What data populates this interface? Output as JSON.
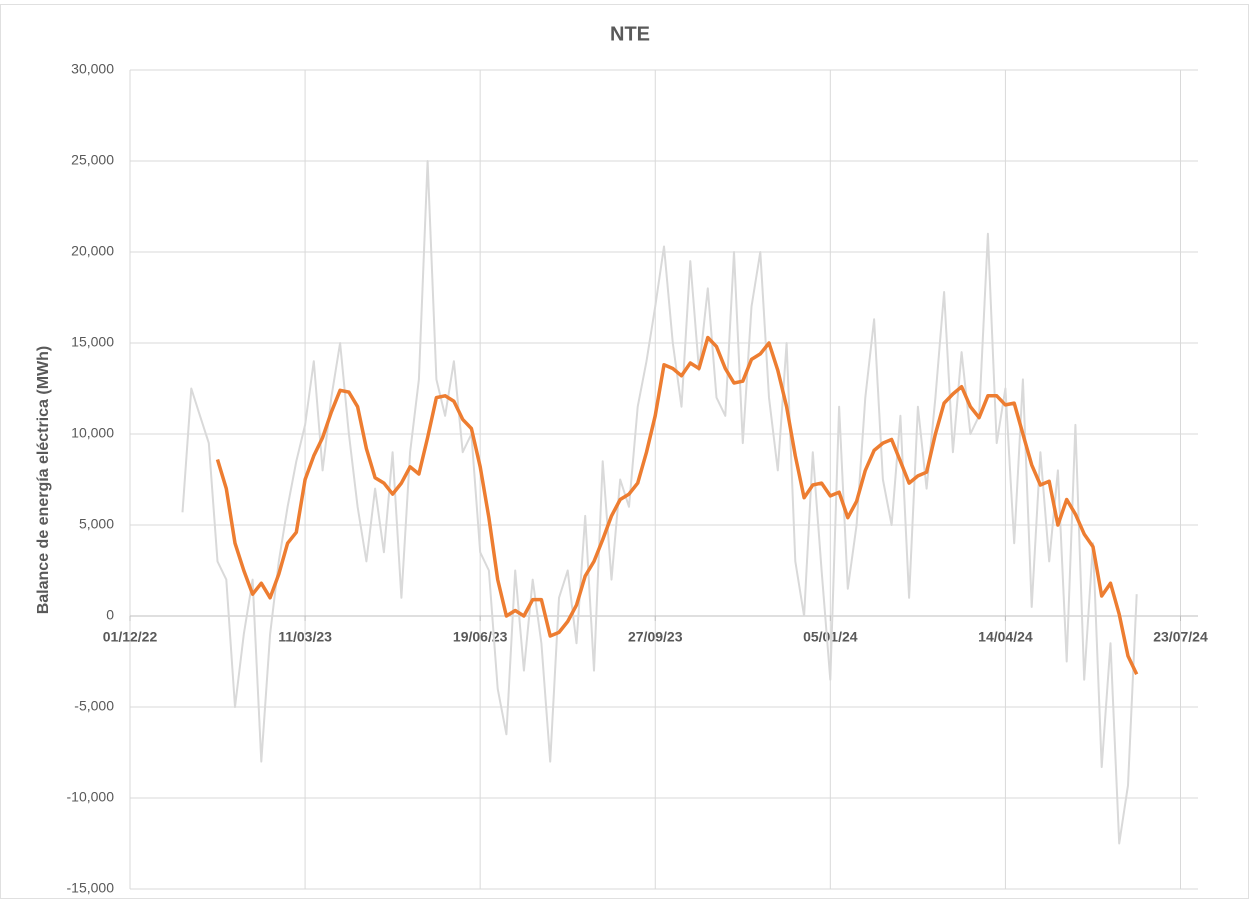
{
  "chart_data": {
    "type": "line",
    "title": "NTE",
    "y_label": "Balance de energía eléctrica (MWh)",
    "x": [
      "31/12/22",
      "05/01/23",
      "10/01/23",
      "15/01/23",
      "20/01/23",
      "25/01/23",
      "30/01/23",
      "04/02/23",
      "09/02/23",
      "14/02/23",
      "19/02/23",
      "24/02/23",
      "01/03/23",
      "06/03/23",
      "11/03/23",
      "16/03/23",
      "21/03/23",
      "26/03/23",
      "31/03/23",
      "05/04/23",
      "10/04/23",
      "15/04/23",
      "20/04/23",
      "25/04/23",
      "30/04/23",
      "05/05/23",
      "10/05/23",
      "15/05/23",
      "20/05/23",
      "25/05/23",
      "30/05/23",
      "04/06/23",
      "09/06/23",
      "14/06/23",
      "19/06/23",
      "24/06/23",
      "29/06/23",
      "04/07/23",
      "09/07/23",
      "14/07/23",
      "19/07/23",
      "24/07/23",
      "29/07/23",
      "03/08/23",
      "08/08/23",
      "13/08/23",
      "18/08/23",
      "23/08/23",
      "28/08/23",
      "02/09/23",
      "07/09/23",
      "12/09/23",
      "17/09/23",
      "22/09/23",
      "27/09/23",
      "02/10/23",
      "07/10/23",
      "12/10/23",
      "17/10/23",
      "22/10/23",
      "27/10/23",
      "01/11/23",
      "06/11/23",
      "11/11/23",
      "16/11/23",
      "21/11/23",
      "26/11/23",
      "01/12/23",
      "06/12/23",
      "11/12/23",
      "16/12/23",
      "21/12/23",
      "26/12/23",
      "31/12/23",
      "05/01/24",
      "10/01/24",
      "15/01/24",
      "20/01/24",
      "25/01/24",
      "30/01/24",
      "04/02/24",
      "09/02/24",
      "14/02/24",
      "19/02/24",
      "24/02/24",
      "29/02/24",
      "05/03/24",
      "10/03/24",
      "15/03/24",
      "20/03/24",
      "25/03/24",
      "30/03/24",
      "04/04/24",
      "09/04/24",
      "14/04/24",
      "19/04/24",
      "24/04/24",
      "29/04/24",
      "04/05/24",
      "09/05/24",
      "14/05/24",
      "19/05/24",
      "24/05/24",
      "29/05/24",
      "03/06/24",
      "08/06/24",
      "13/06/24",
      "18/06/24",
      "23/06/24",
      "28/06/24"
    ],
    "series": [
      {
        "color": "#d9d9d9",
        "width": 2,
        "values": [
          5700,
          12500,
          11000,
          9500,
          3000,
          2000,
          -5000,
          -1000,
          2000,
          -8000,
          -1000,
          3000,
          6000,
          8500,
          10500,
          14000,
          8000,
          12000,
          15000,
          10000,
          6000,
          3000,
          7000,
          3500,
          9000,
          1000,
          9000,
          13000,
          25000,
          13000,
          11000,
          14000,
          9000,
          10000,
          3500,
          2500,
          -4000,
          -6500,
          2500,
          -3000,
          2000,
          -1500,
          -8000,
          1000,
          2500,
          -1500,
          5500,
          -3000,
          8500,
          2000,
          7500,
          6000,
          11500,
          14000,
          17000,
          20300,
          15000,
          11500,
          19500,
          13500,
          18000,
          12000,
          11000,
          20000,
          9500,
          17000,
          20000,
          12000,
          8000,
          15000,
          3000,
          0,
          9000,
          2500,
          -3500,
          11500,
          1500,
          5000,
          12000,
          16300,
          7500,
          5000,
          11000,
          1000,
          11500,
          7000,
          12000,
          17800,
          9000,
          14500,
          10000,
          11000,
          21000,
          9500,
          12500,
          4000,
          13000,
          500,
          9000,
          3000,
          8000,
          -2500,
          10500,
          -3500,
          4000,
          -8300,
          -1500,
          -12500,
          -9300,
          1200
        ]
      },
      {
        "color": "#ed7d31",
        "width": 3.5,
        "values": [
          null,
          null,
          null,
          null,
          8600,
          7000,
          4000,
          2500,
          1200,
          1800,
          1000,
          2300,
          4000,
          4600,
          7500,
          8800,
          9800,
          11200,
          12400,
          12300,
          11500,
          9200,
          7600,
          7300,
          6700,
          7300,
          8200,
          7800,
          9800,
          12000,
          12100,
          11800,
          10800,
          10300,
          8200,
          5400,
          2000,
          0,
          300,
          0,
          900,
          900,
          -1100,
          -900,
          -300,
          600,
          2200,
          3000,
          4200,
          5500,
          6400,
          6700,
          7300,
          9000,
          11000,
          13800,
          13600,
          13200,
          13900,
          13600,
          15300,
          14800,
          13600,
          12800,
          12900,
          14100,
          14400,
          15000,
          13500,
          11500,
          8800,
          6500,
          7200,
          7300,
          6600,
          6800,
          5400,
          6300,
          8000,
          9100,
          9500,
          9700,
          8500,
          7300,
          7700,
          7900,
          10000,
          11700,
          12200,
          12600,
          11500,
          10900,
          12100,
          12100,
          11600,
          11700,
          10000,
          8300,
          7200,
          7400,
          5000,
          6400,
          5600,
          4500,
          3800,
          1100,
          1800,
          100,
          -2200,
          -3200
        ]
      }
    ],
    "xlim": [
      "01/12/22",
      "02/08/24"
    ],
    "xticks": [
      "01/12/22",
      "11/03/23",
      "19/06/23",
      "27/09/23",
      "05/01/24",
      "14/04/24",
      "23/07/24"
    ],
    "ylim": [
      -15000,
      30000
    ],
    "yticks": [
      {
        "value": -15000,
        "label": "-15,000"
      },
      {
        "value": -10000,
        "label": "-10,000"
      },
      {
        "value": -5000,
        "label": "-5,000"
      },
      0,
      {
        "value": 5000,
        "label": "5,000"
      },
      {
        "value": 10000,
        "label": "10,000"
      },
      {
        "value": 15000,
        "label": "15,000"
      },
      {
        "value": 20000,
        "label": "20,000"
      },
      {
        "value": 25000,
        "label": "25,000"
      },
      {
        "value": 30000,
        "label": "30,000"
      }
    ],
    "grid": true
  }
}
